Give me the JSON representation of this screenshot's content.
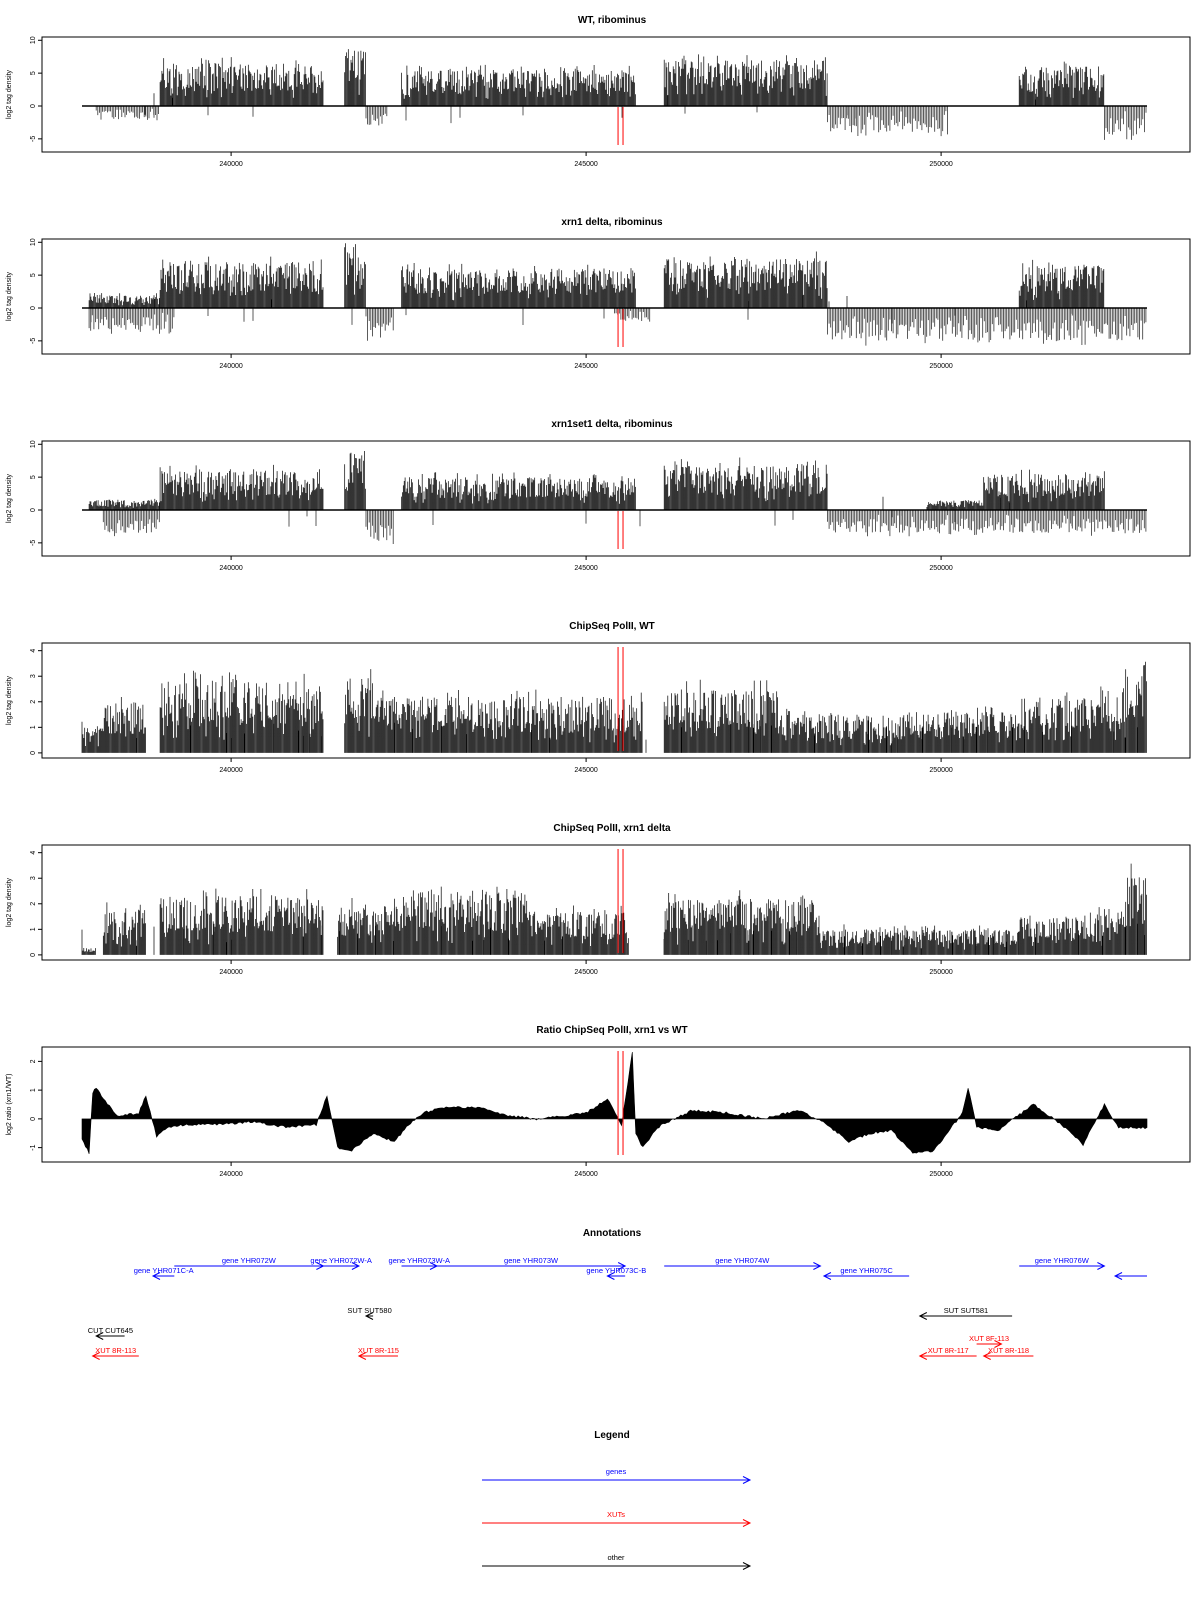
{
  "chart_data": [
    {
      "type": "bar",
      "title": "WT, ribominus",
      "ylabel": "log2 tag density",
      "xlim": [
        237900,
        252900
      ],
      "ylim": [
        -7,
        10.5
      ],
      "yticks": [
        -5,
        0,
        5,
        10
      ],
      "ytick_labels": [
        "-5",
        "0",
        "5",
        "10"
      ],
      "xticks": [
        240000,
        245000,
        250000
      ],
      "xtick_labels": [
        "240000",
        "245000",
        "250000"
      ],
      "markers_x": [
        245450,
        245520
      ],
      "forward_segments": [
        {
          "start": 239000,
          "end": 241300,
          "level": 6.5
        },
        {
          "start": 241600,
          "end": 241900,
          "level": 9
        },
        {
          "start": 242400,
          "end": 245700,
          "level": 5.5
        },
        {
          "start": 246100,
          "end": 248400,
          "level": 7
        },
        {
          "start": 251100,
          "end": 252300,
          "level": 6
        }
      ],
      "reverse_segments": [
        {
          "start": 238100,
          "end": 239000,
          "level": -2
        },
        {
          "start": 241900,
          "end": 242200,
          "level": -3
        },
        {
          "start": 248400,
          "end": 250100,
          "level": -4
        },
        {
          "start": 252300,
          "end": 252900,
          "level": -4.5
        }
      ]
    },
    {
      "type": "bar",
      "title": "xrn1 delta, ribominus",
      "ylabel": "log2 tag density",
      "xlim": [
        237900,
        252900
      ],
      "ylim": [
        -7,
        10.5
      ],
      "yticks": [
        -5,
        0,
        5,
        10
      ],
      "ytick_labels": [
        "-5",
        "0",
        "5",
        "10"
      ],
      "xticks": [
        240000,
        245000,
        250000
      ],
      "xtick_labels": [
        "240000",
        "245000",
        "250000"
      ],
      "markers_x": [
        245450,
        245520
      ],
      "forward_segments": [
        {
          "start": 238000,
          "end": 239000,
          "level": 2
        },
        {
          "start": 239000,
          "end": 241300,
          "level": 7
        },
        {
          "start": 241600,
          "end": 241900,
          "level": 10
        },
        {
          "start": 242400,
          "end": 245700,
          "level": 6
        },
        {
          "start": 246100,
          "end": 248400,
          "level": 7.5
        },
        {
          "start": 251100,
          "end": 252300,
          "level": 6.5
        }
      ],
      "reverse_segments": [
        {
          "start": 238000,
          "end": 239200,
          "level": -3.5
        },
        {
          "start": 241900,
          "end": 242300,
          "level": -4.5
        },
        {
          "start": 245400,
          "end": 245900,
          "level": -2
        },
        {
          "start": 248400,
          "end": 252900,
          "level": -5
        }
      ]
    },
    {
      "type": "bar",
      "title": "xrn1set1 delta, ribominus",
      "ylabel": "log2 tag density",
      "xlim": [
        237900,
        252900
      ],
      "ylim": [
        -7,
        10.5
      ],
      "yticks": [
        -5,
        0,
        5,
        10
      ],
      "ytick_labels": [
        "-5",
        "0",
        "5",
        "10"
      ],
      "xticks": [
        240000,
        245000,
        250000
      ],
      "xtick_labels": [
        "240000",
        "245000",
        "250000"
      ],
      "markers_x": [
        245450,
        245520
      ],
      "forward_segments": [
        {
          "start": 238000,
          "end": 239000,
          "level": 1.5
        },
        {
          "start": 239000,
          "end": 241300,
          "level": 6
        },
        {
          "start": 241600,
          "end": 241900,
          "level": 9
        },
        {
          "start": 242400,
          "end": 245700,
          "level": 5
        },
        {
          "start": 246100,
          "end": 248400,
          "level": 7
        },
        {
          "start": 249800,
          "end": 250600,
          "level": 1.5
        },
        {
          "start": 250600,
          "end": 252300,
          "level": 5.5
        }
      ],
      "reverse_segments": [
        {
          "start": 238200,
          "end": 239000,
          "level": -3.5
        },
        {
          "start": 241900,
          "end": 242300,
          "level": -5
        },
        {
          "start": 248400,
          "end": 252900,
          "level": -3.5
        }
      ]
    },
    {
      "type": "bar",
      "title": "ChipSeq PolII, WT",
      "ylabel": "log2 tag density",
      "xlim": [
        237900,
        252900
      ],
      "ylim": [
        -0.2,
        4.3
      ],
      "yticks": [
        0,
        1,
        2,
        3,
        4
      ],
      "ytick_labels": [
        "0",
        "1",
        "2",
        "3",
        "4"
      ],
      "xticks": [
        240000,
        245000,
        250000
      ],
      "xtick_labels": [
        "240000",
        "245000",
        "250000"
      ],
      "markers_x": [
        245450,
        245520
      ],
      "segments": [
        {
          "start": 237900,
          "end": 238200,
          "level": 1
        },
        {
          "start": 238200,
          "end": 238800,
          "level": 2
        },
        {
          "start": 239000,
          "end": 241300,
          "level": 2.8
        },
        {
          "start": 241600,
          "end": 242100,
          "level": 3
        },
        {
          "start": 242100,
          "end": 245800,
          "level": 2.2
        },
        {
          "start": 246100,
          "end": 247700,
          "level": 2.5
        },
        {
          "start": 247700,
          "end": 249500,
          "level": 1.5
        },
        {
          "start": 249500,
          "end": 251100,
          "level": 1.6
        },
        {
          "start": 251100,
          "end": 252200,
          "level": 2.2
        },
        {
          "start": 252200,
          "end": 252600,
          "level": 2.6
        },
        {
          "start": 252600,
          "end": 252900,
          "level": 3.8
        }
      ]
    },
    {
      "type": "bar",
      "title": "ChipSeq PolII, xrn1 delta",
      "ylabel": "log2 tag density",
      "xlim": [
        237900,
        252900
      ],
      "ylim": [
        -0.2,
        4.3
      ],
      "yticks": [
        0,
        1,
        2,
        3,
        4
      ],
      "ytick_labels": [
        "0",
        "1",
        "2",
        "3",
        "4"
      ],
      "xticks": [
        240000,
        245000,
        250000
      ],
      "xtick_labels": [
        "240000",
        "245000",
        "250000"
      ],
      "markers_x": [
        245450,
        245520
      ],
      "segments": [
        {
          "start": 237900,
          "end": 238100,
          "level": 0.3
        },
        {
          "start": 238200,
          "end": 238800,
          "level": 1.8
        },
        {
          "start": 239000,
          "end": 241300,
          "level": 2.3
        },
        {
          "start": 241500,
          "end": 242300,
          "level": 2
        },
        {
          "start": 242300,
          "end": 244200,
          "level": 2.6
        },
        {
          "start": 244200,
          "end": 245600,
          "level": 1.7
        },
        {
          "start": 246100,
          "end": 248300,
          "level": 2.2
        },
        {
          "start": 248300,
          "end": 251100,
          "level": 1
        },
        {
          "start": 251100,
          "end": 252200,
          "level": 1.5
        },
        {
          "start": 252200,
          "end": 252600,
          "level": 1.8
        },
        {
          "start": 252600,
          "end": 252900,
          "level": 3.2
        }
      ]
    },
    {
      "type": "area",
      "title": "Ratio ChipSeq PolII, xrn1 vs WT",
      "ylabel": "log2 ratio (xrn1/WT)",
      "xlim": [
        237900,
        252900
      ],
      "ylim": [
        -1.5,
        2.5
      ],
      "yticks": [
        -1,
        0,
        1,
        2
      ],
      "ytick_labels": [
        "-1",
        "0",
        "1",
        "2"
      ],
      "xticks": [
        240000,
        245000,
        250000
      ],
      "xtick_labels": [
        "240000",
        "245000",
        "250000"
      ],
      "markers_x": [
        245450,
        245520
      ],
      "x": [
        237900,
        238000,
        238050,
        238100,
        238200,
        238400,
        238700,
        238800,
        238950,
        239100,
        239400,
        239800,
        240300,
        240800,
        241200,
        241350,
        241500,
        241700,
        242000,
        242300,
        242500,
        242700,
        243000,
        243500,
        243900,
        244300,
        244700,
        245000,
        245300,
        245500,
        245650,
        245700,
        245800,
        246000,
        246500,
        247000,
        247500,
        248000,
        248400,
        248700,
        249000,
        249300,
        249600,
        249900,
        250300,
        250380,
        250500,
        250800,
        251300,
        251700,
        252000,
        252300,
        252500,
        252900
      ],
      "y": [
        -0.7,
        -1.2,
        0.9,
        1.1,
        0.7,
        0.1,
        0.2,
        0.8,
        -0.6,
        -0.3,
        -0.2,
        -0.2,
        -0.1,
        -0.3,
        -0.2,
        0.8,
        -1.0,
        -1.1,
        -0.5,
        -0.8,
        -0.2,
        0.2,
        0.4,
        0.4,
        0.1,
        0.0,
        0.1,
        0.2,
        0.7,
        -0.2,
        2.3,
        -0.5,
        -1.0,
        -0.3,
        0.3,
        0.2,
        0.0,
        0.3,
        -0.2,
        -0.8,
        -0.5,
        -0.4,
        -1.2,
        -1.1,
        0.2,
        1.1,
        -0.3,
        -0.4,
        0.5,
        -0.2,
        -0.9,
        0.5,
        -0.3,
        -0.3
      ]
    }
  ],
  "annotations": {
    "title": "Annotations",
    "xlim": [
      237900,
      252900
    ],
    "items": [
      {
        "label": "gene YHR071C-A",
        "start": 238900,
        "end": 239200,
        "strand": "-",
        "row": 2,
        "color": "#0000ff"
      },
      {
        "label": "gene YHR072W",
        "start": 239200,
        "end": 241300,
        "strand": "+",
        "row": 1,
        "color": "#0000ff"
      },
      {
        "label": "gene YHR072W-A",
        "start": 241300,
        "end": 241800,
        "strand": "+",
        "row": 1,
        "color": "#0000ff"
      },
      {
        "label": "gene YHR073W-A",
        "start": 242400,
        "end": 242900,
        "strand": "+",
        "row": 1,
        "color": "#0000ff"
      },
      {
        "label": "gene YHR073W",
        "start": 242900,
        "end": 245550,
        "strand": "+",
        "row": 1,
        "color": "#0000ff"
      },
      {
        "label": "gene YHR073C-B",
        "start": 245300,
        "end": 245550,
        "strand": "-",
        "row": 2,
        "color": "#0000ff"
      },
      {
        "label": "gene YHR074W",
        "start": 246100,
        "end": 248300,
        "strand": "+",
        "row": 1,
        "color": "#0000ff"
      },
      {
        "label": "gene YHR075C",
        "start": 248350,
        "end": 249550,
        "strand": "-",
        "row": 2,
        "color": "#0000ff"
      },
      {
        "label": "gene YHR076W",
        "start": 251100,
        "end": 252300,
        "strand": "+",
        "row": 1,
        "color": "#0000ff"
      },
      {
        "label": "",
        "start": 252450,
        "end": 252900,
        "strand": "-",
        "row": 2,
        "color": "#0000ff"
      },
      {
        "label": "SUT SUT580",
        "start": 241900,
        "end": 242000,
        "strand": "-",
        "row": 3,
        "color": "#000000"
      },
      {
        "label": "SUT SUT581",
        "start": 249700,
        "end": 251000,
        "strand": "-",
        "row": 3,
        "color": "#000000"
      },
      {
        "label": "CUT CUT645",
        "start": 238100,
        "end": 238500,
        "strand": "-",
        "row": 4,
        "color": "#000000"
      },
      {
        "label": "XUT 8R-113",
        "start": 238050,
        "end": 238700,
        "strand": "-",
        "row": 5,
        "color": "#ff0000"
      },
      {
        "label": "XUT 8R-115",
        "start": 241800,
        "end": 242350,
        "strand": "-",
        "row": 5,
        "color": "#ff0000"
      },
      {
        "label": "XUT 8F-113",
        "start": 250500,
        "end": 250850,
        "strand": "+",
        "row": 4.5,
        "color": "#ff0000"
      },
      {
        "label": "XUT 8R-117",
        "start": 249700,
        "end": 250500,
        "strand": "-",
        "row": 5,
        "color": "#ff0000"
      },
      {
        "label": "XUT 8R-118",
        "start": 250600,
        "end": 251300,
        "strand": "-",
        "row": 5,
        "color": "#ff0000"
      }
    ]
  },
  "legend": {
    "title": "Legend",
    "items": [
      {
        "label": "genes",
        "color": "#0000ff"
      },
      {
        "label": "XUTs",
        "color": "#ff0000"
      },
      {
        "label": "other",
        "color": "#000000"
      }
    ]
  }
}
